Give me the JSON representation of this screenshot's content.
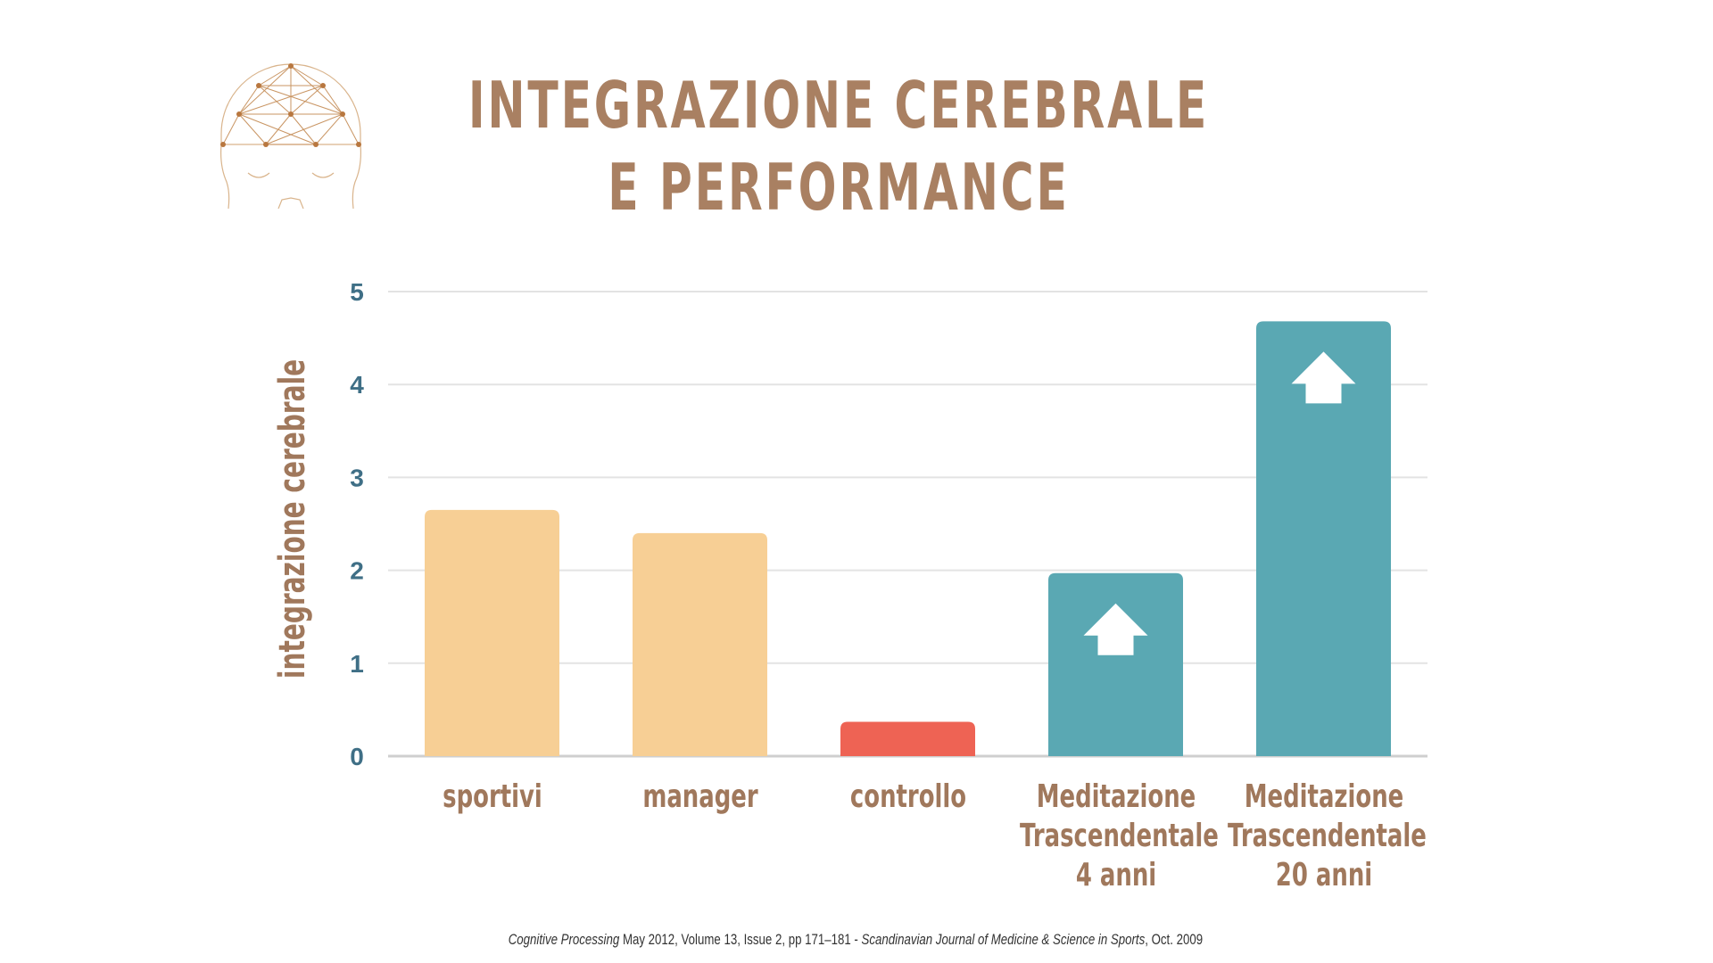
{
  "title": {
    "line1": "INTEGRAZIONE CEREBRALE",
    "line2": "E PERFORMANCE"
  },
  "logo": {
    "icon": "brain-network-head-icon"
  },
  "colors": {
    "title": "#a98062",
    "label": "#a0785c",
    "tick": "#3f6f86",
    "grid": "#e3e3e3",
    "bar_light": "#f7cf95",
    "bar_control": "#ee6354",
    "bar_tm": "#5aa8b3"
  },
  "chart_data": {
    "type": "bar",
    "categories": [
      "sportivi",
      "manager",
      "controllo",
      "Meditazione\nTrascendentale\n4 anni",
      "Meditazione\nTrascendentale\n20 anni"
    ],
    "values": [
      2.65,
      2.4,
      0.37,
      1.97,
      4.68
    ],
    "bar_colors": [
      "#f7cf95",
      "#f7cf95",
      "#ee6354",
      "#5aa8b3",
      "#5aa8b3"
    ],
    "arrow_markers": [
      false,
      false,
      false,
      true,
      true
    ],
    "ylabel": "integrazione cerebrale",
    "xlabel": "",
    "ylim": [
      0,
      5
    ],
    "yticks": [
      "0",
      "1",
      "2",
      "3",
      "4",
      "5"
    ],
    "grid": true
  },
  "citation": {
    "journal1": "Cognitive Processing",
    "text1": " May 2012, Volume 13, Issue 2, pp 171–181 - ",
    "journal2": "Scandinavian Journal of Medicine & Science in Sports",
    "text2": ", Oct. 2009"
  }
}
